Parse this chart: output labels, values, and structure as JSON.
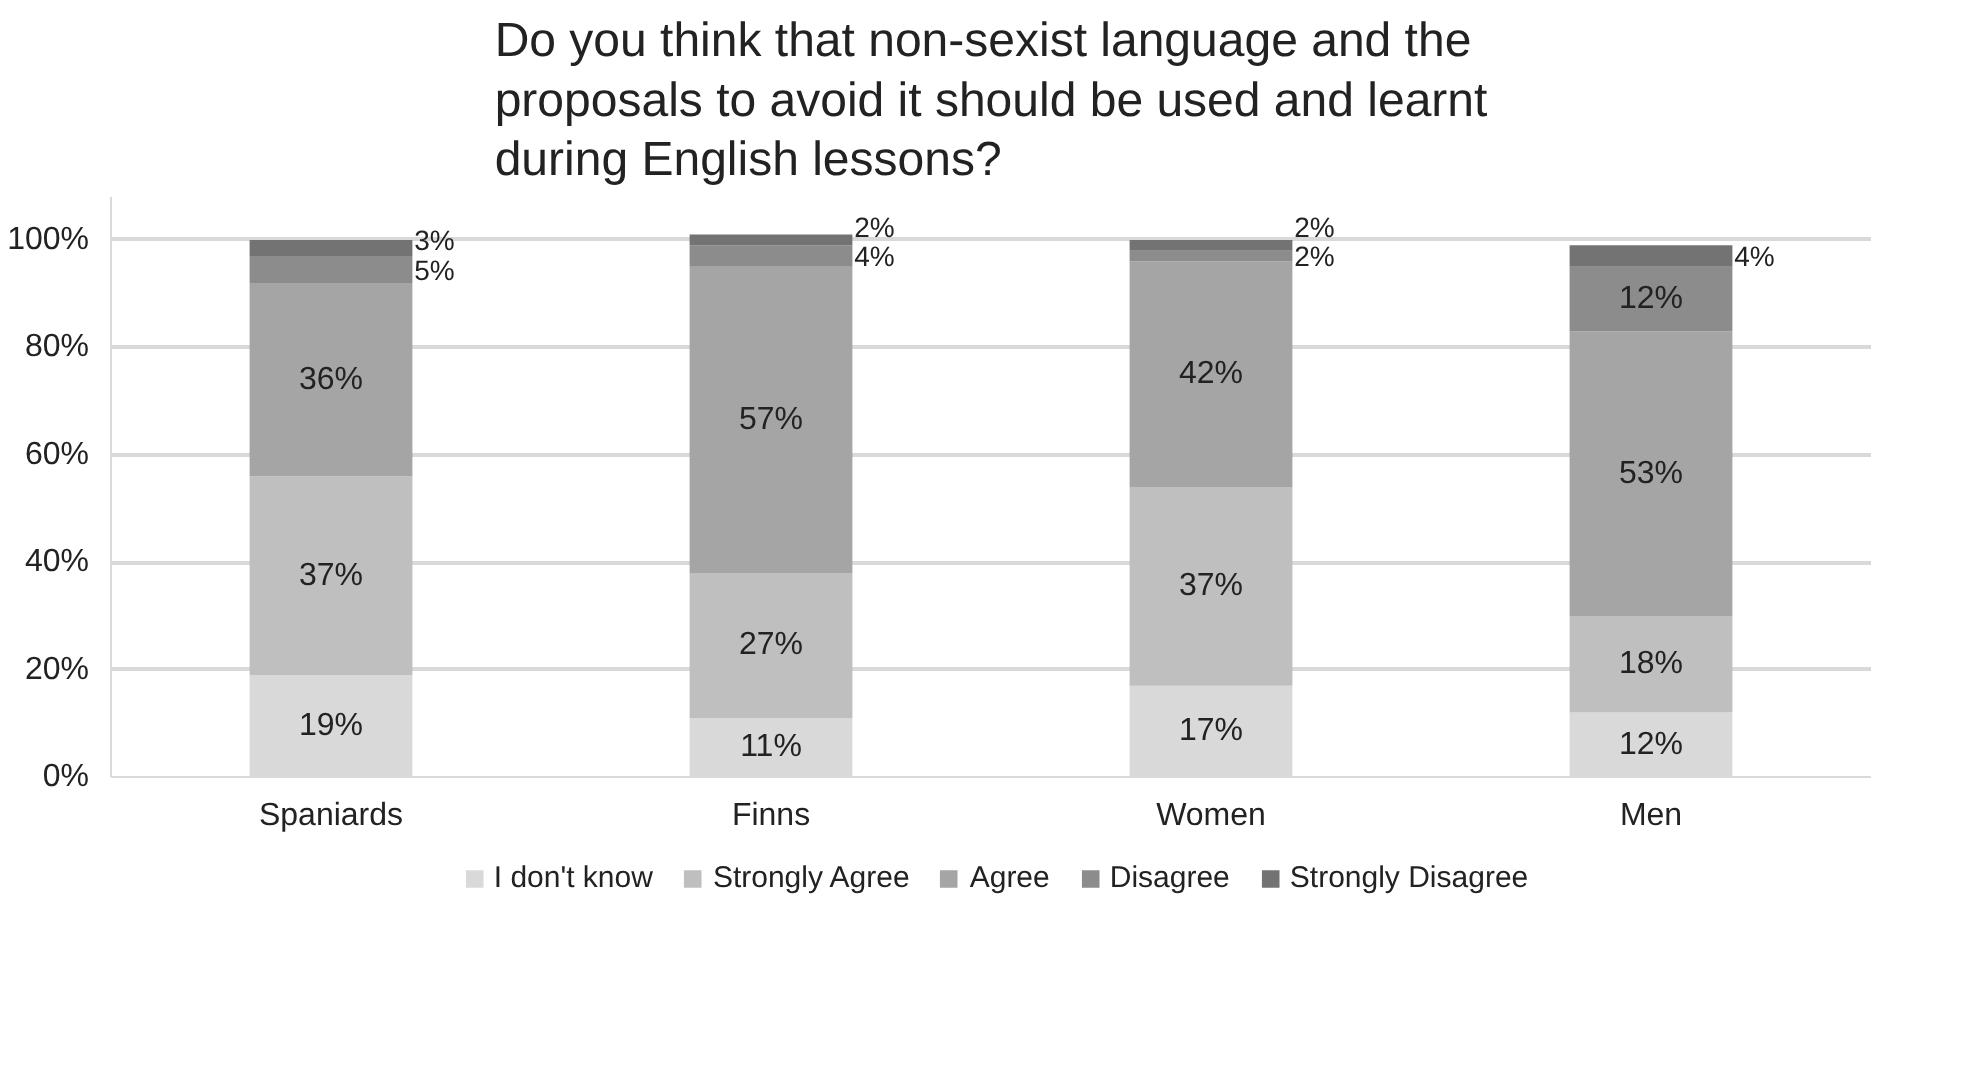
{
  "chart_data": {
    "type": "bar",
    "stacked": true,
    "title": "Do you think that non-sexist language and the proposals to avoid it should be used and learnt during English lessons?",
    "categories": [
      "Spaniards",
      "Finns",
      "Women",
      "Men"
    ],
    "series": [
      {
        "name": "I don't know",
        "color": "#d9d9d9",
        "values": [
          19,
          11,
          17,
          12
        ],
        "value_labels": [
          "19%",
          "11%",
          "17%",
          "12%"
        ]
      },
      {
        "name": "Strongly Agree",
        "color": "#bfbfbf",
        "values": [
          37,
          27,
          37,
          18
        ],
        "value_labels": [
          "37%",
          "27%",
          "37%",
          "18%"
        ]
      },
      {
        "name": "Agree",
        "color": "#a5a5a5",
        "values": [
          36,
          57,
          42,
          53
        ],
        "value_labels": [
          "36%",
          "57%",
          "42%",
          "53%"
        ]
      },
      {
        "name": "Disagree",
        "color": "#8c8c8c",
        "values": [
          5,
          4,
          2,
          12
        ],
        "value_labels": [
          "5%",
          "4%",
          "2%",
          "12%"
        ]
      },
      {
        "name": "Strongly Disagree",
        "color": "#737373",
        "values": [
          3,
          2,
          2,
          4
        ],
        "value_labels": [
          "3%",
          "2%",
          "2%",
          "4%"
        ]
      }
    ],
    "ylim": [
      0,
      108
    ],
    "yticks": [
      {
        "value": 0,
        "label": "0%"
      },
      {
        "value": 20,
        "label": "20%"
      },
      {
        "value": 40,
        "label": "40%"
      },
      {
        "value": 60,
        "label": "60%"
      },
      {
        "value": 80,
        "label": "80%"
      },
      {
        "value": 100,
        "label": "100%"
      }
    ],
    "grid": "y",
    "legend": "bottom"
  }
}
